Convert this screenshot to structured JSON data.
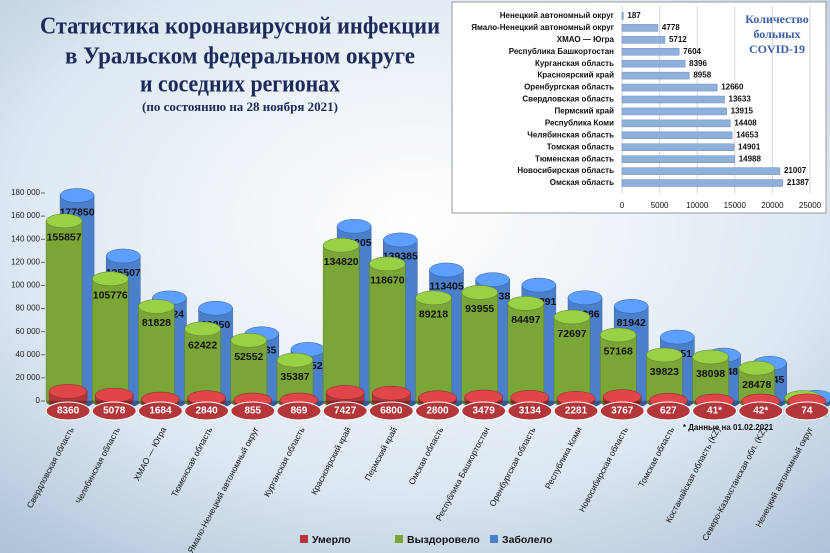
{
  "chart_data": [
    {
      "type": "cylinder",
      "title": [
        "Статистика коронавирусной инфекции",
        "в Уральском федеральном округе",
        "и соседних регионах"
      ],
      "subtitle": "(по состоянию на 28 ноября 2021)",
      "note": "* Данные на 01.02.2021",
      "categories": [
        "Свердловская область",
        "Челябинская область",
        "ХМАО — Югра",
        "Тюменская область",
        "Ямало-Ненецкий автономный округ",
        "Курганская область",
        "Красноярский край",
        "Пермский край",
        "Омская область",
        "Республика Башкортостан",
        "Оренбургская область",
        "Республика Коми",
        "Новосибирская область",
        "Томская область",
        "Костанайская область (KZ)",
        "Северо-Казахстанская обл. (KZ)",
        "Ненецкий автономный округ"
      ],
      "series": [
        {
          "name": "Заболело",
          "color": "#4a7fcc",
          "values": [
            177850,
            125507,
            89224,
            80250,
            58185,
            44652,
            151205,
            139385,
            113405,
            105038,
            100291,
            89386,
            81942,
            55351,
            39748,
            32645,
            3199
          ]
        },
        {
          "name": "Выздоровело",
          "color": "#7aa638",
          "values": [
            155857,
            105776,
            81828,
            62422,
            52552,
            35387,
            134820,
            118670,
            89218,
            93955,
            84497,
            72697,
            57168,
            39823,
            38098,
            28478,
            2938
          ]
        },
        {
          "name": "Умерло",
          "color": "#b3373a",
          "values": [
            8360,
            5078,
            1684,
            2840,
            855,
            869,
            7427,
            6800,
            2800,
            3479,
            3134,
            2281,
            3767,
            627,
            41,
            42,
            74
          ],
          "value_labels": [
            "8360",
            "5078",
            "1684",
            "2840",
            "855",
            "869",
            "7427",
            "6800",
            "2800",
            "3479",
            "3134",
            "2281",
            "3767",
            "627",
            "41*",
            "42*",
            "74"
          ]
        }
      ],
      "ylim": [
        0,
        180000
      ],
      "yticks": [
        0,
        {
          "value": 20000,
          "label": "20 000"
        },
        {
          "value": 40000,
          "label": "40 000"
        },
        {
          "value": 60000,
          "label": "60 000"
        },
        {
          "value": 80000,
          "label": "80 000"
        },
        {
          "value": 100000,
          "label": "100 000"
        },
        {
          "value": 120000,
          "label": "120 000"
        },
        {
          "value": 140000,
          "label": "140 000"
        },
        {
          "value": 160000,
          "label": "160 000"
        },
        {
          "value": 180000,
          "label": "180 000"
        }
      ],
      "legend": "bottom"
    },
    {
      "type": "barh",
      "title": "Количество больных COVID-19",
      "categories": [
        "Ненецкий автономный округ",
        "Ямало-Ненецкий автономный округ",
        "ХМАО — Югра",
        "Республика Башкортостан",
        "Курганская область",
        "Красноярский край",
        "Оренбургская область",
        "Свердловская область",
        "Пермский край",
        "Республика Коми",
        "Челябинская область",
        "Томская область",
        "Тюменская область",
        "Новосибирская область",
        "Омская область"
      ],
      "values": [
        187,
        4778,
        5712,
        7604,
        8396,
        8958,
        12660,
        13633,
        13915,
        14408,
        14653,
        14901,
        14988,
        21007,
        21387
      ],
      "color": "#8fb0da",
      "xlim": [
        0,
        25000
      ],
      "xticks": [
        0,
        5000,
        10000,
        15000,
        20000,
        25000
      ],
      "grid": true
    }
  ]
}
